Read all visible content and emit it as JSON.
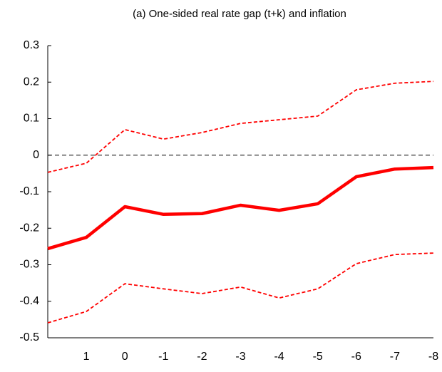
{
  "chart_data": {
    "type": "line",
    "title": "(a) One-sided real rate gap (t+k) and inflation",
    "categories": [
      null,
      "1",
      "0",
      "-1",
      "-2",
      "-3",
      "-4",
      "-5",
      "-6",
      "-7",
      "-8"
    ],
    "series": [
      {
        "color": "#ff0000",
        "line_style": "solid",
        "values": [
          -0.256,
          -0.225,
          -0.141,
          -0.162,
          -0.16,
          -0.137,
          -0.151,
          -0.133,
          -0.059,
          -0.038,
          -0.034
        ]
      },
      {
        "color": "#ff0000",
        "line_style": "dashed",
        "values": [
          -0.047,
          -0.022,
          0.07,
          0.044,
          0.062,
          0.087,
          0.097,
          0.107,
          0.179,
          0.197,
          0.202
        ]
      },
      {
        "color": "#ff0000",
        "line_style": "dashed",
        "values": [
          -0.459,
          -0.428,
          -0.352,
          -0.366,
          -0.379,
          -0.361,
          -0.391,
          -0.366,
          -0.297,
          -0.272,
          -0.268
        ]
      }
    ],
    "reference_line": 0,
    "ylim": [
      -0.5,
      0.3
    ],
    "yticks": [
      -0.5,
      -0.4,
      -0.3,
      -0.2,
      -0.1,
      0,
      0.1,
      0.2,
      0.3
    ]
  }
}
